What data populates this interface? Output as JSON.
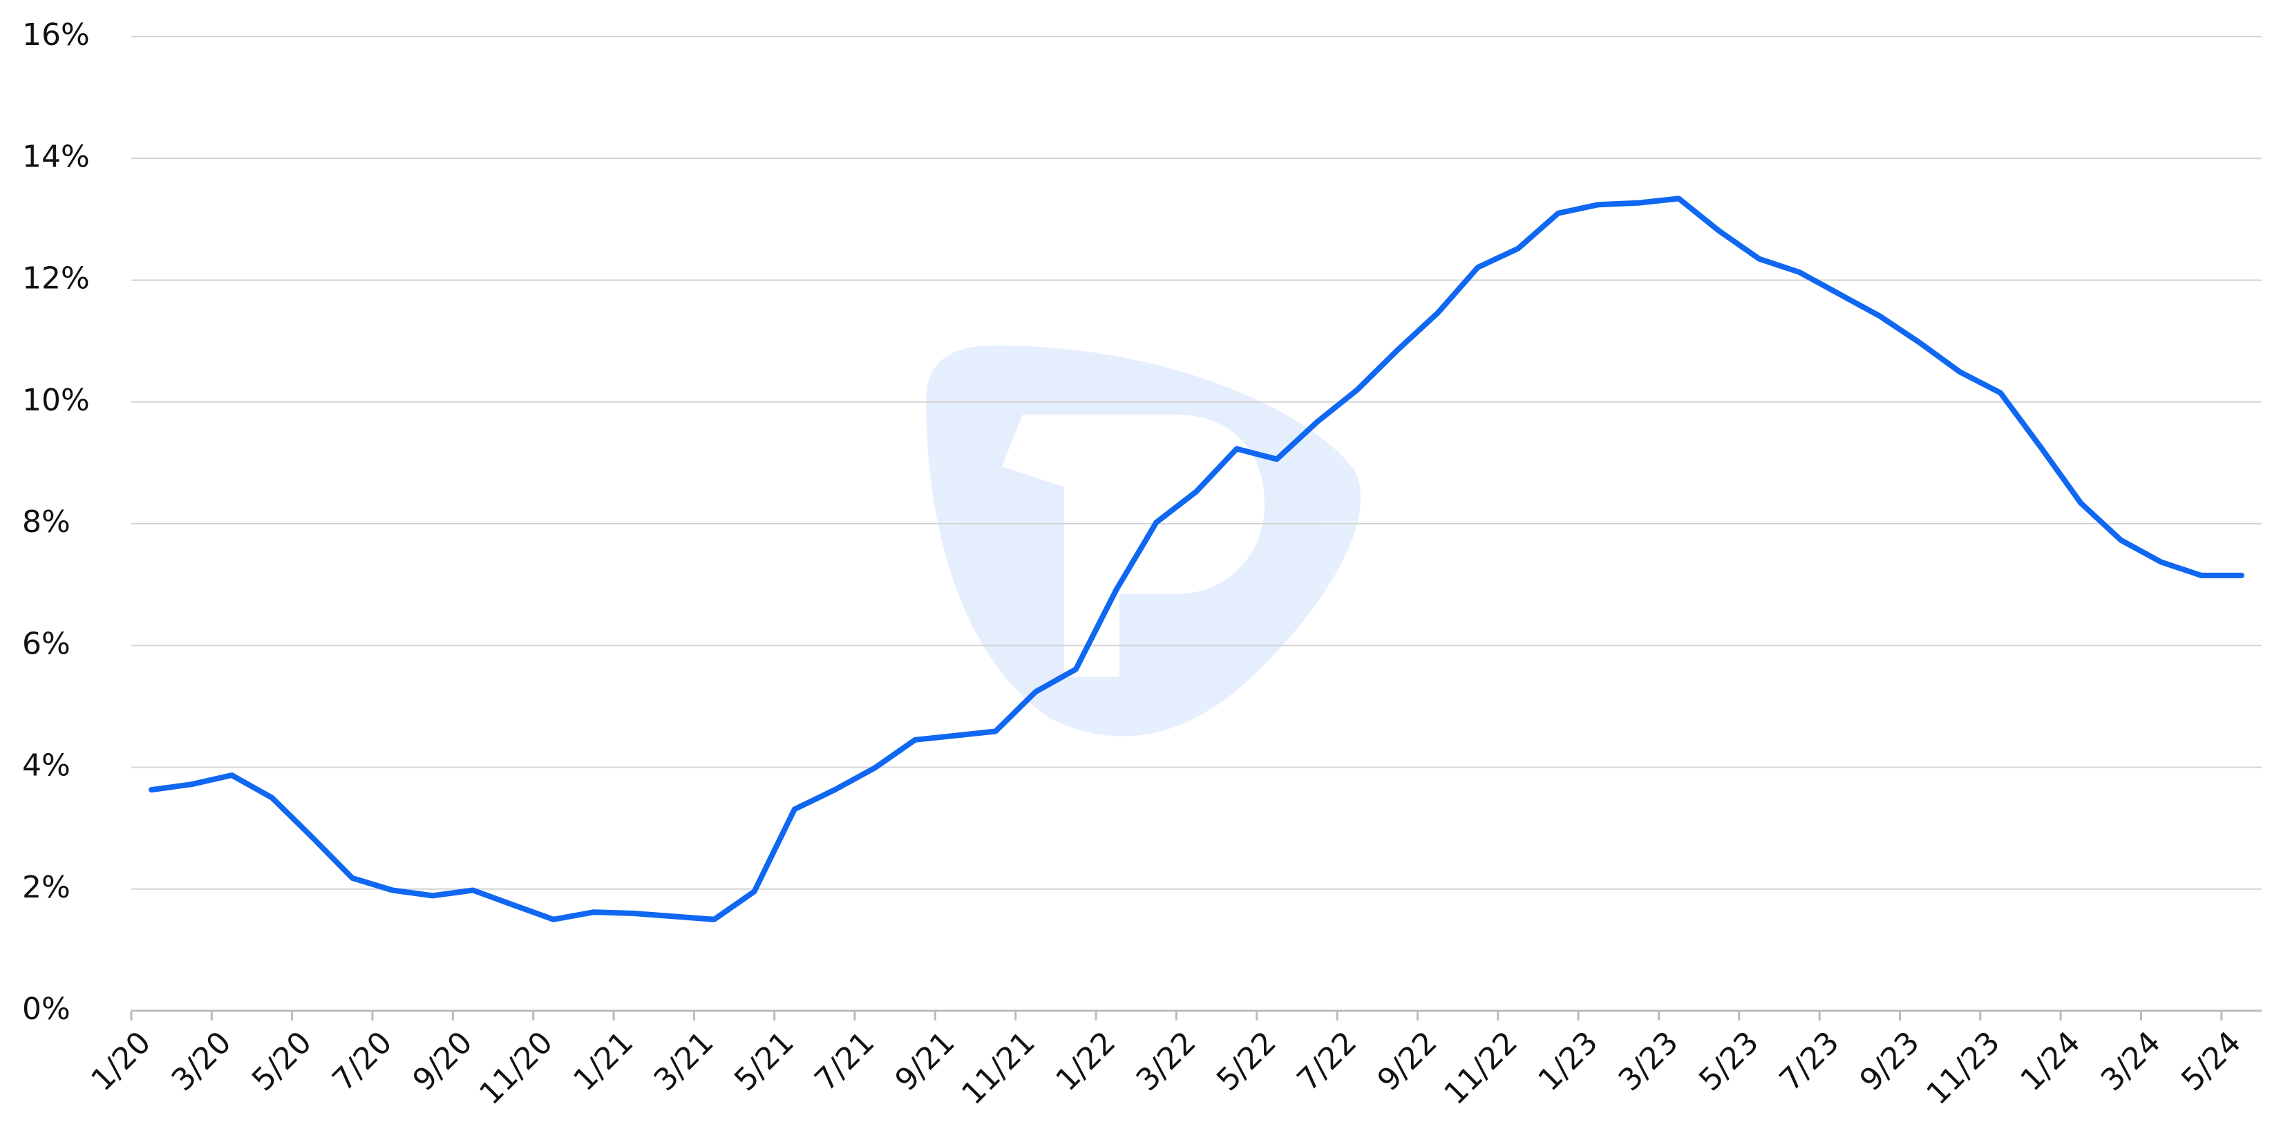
{
  "chart_data": {
    "type": "line",
    "categories": [
      "1/20",
      null,
      "3/20",
      null,
      "5/20",
      null,
      "7/20",
      null,
      "9/20",
      null,
      "11/20",
      null,
      "1/21",
      null,
      "3/21",
      null,
      "5/21",
      null,
      "7/21",
      null,
      "9/21",
      null,
      "11/21",
      null,
      "1/22",
      null,
      "3/22",
      null,
      "5/22",
      null,
      "7/22",
      null,
      "9/22",
      null,
      "11/22",
      null,
      "1/23",
      null,
      "3/23",
      null,
      "5/23",
      null,
      "7/23",
      null,
      "9/23",
      null,
      "11/23",
      null,
      "1/24",
      null,
      "3/24",
      null,
      "5/24"
    ],
    "series": [
      {
        "color": "#0f67f2",
        "values": [
          3.63,
          3.72,
          3.87,
          3.5,
          2.85,
          2.18,
          1.98,
          1.89,
          1.98,
          1.74,
          1.5,
          1.62,
          1.6,
          1.55,
          1.5,
          1.96,
          3.31,
          3.63,
          3.99,
          4.45,
          4.52,
          4.59,
          5.24,
          5.61,
          6.91,
          8.02,
          8.53,
          9.23,
          9.06,
          9.67,
          10.2,
          10.85,
          11.46,
          12.21,
          12.52,
          13.1,
          13.24,
          13.27,
          13.34,
          12.81,
          12.35,
          12.13,
          11.77,
          11.41,
          10.97,
          10.49,
          10.15,
          9.26,
          8.34,
          7.73,
          7.37,
          7.15,
          7.15
        ]
      }
    ],
    "ylim": [
      0,
      16
    ],
    "yticks": [
      {
        "value": 0,
        "label": "0%"
      },
      {
        "value": 2,
        "label": "2%"
      },
      {
        "value": 4,
        "label": "4%"
      },
      {
        "value": 6,
        "label": "6%"
      },
      {
        "value": 8,
        "label": "8%"
      },
      {
        "value": 10,
        "label": "10%"
      },
      {
        "value": 12,
        "label": "12%"
      },
      {
        "value": 14,
        "label": "14%"
      },
      {
        "value": 16,
        "label": "16%"
      }
    ],
    "grid": true
  }
}
